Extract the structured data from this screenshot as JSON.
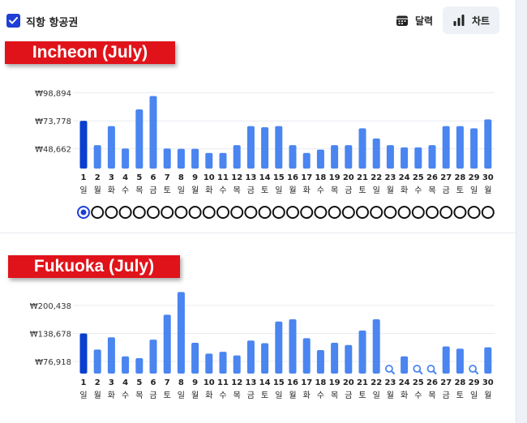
{
  "header": {
    "direct_label": "직항 항공권",
    "calendar_label": "달력",
    "chart_label": "차트"
  },
  "colors": {
    "bar": "#4a85f0",
    "bar_selected": "#0a3fcf",
    "banner": "#e0131a",
    "accent": "#1f3fd6"
  },
  "chart_data": [
    {
      "type": "bar",
      "title": "Incheon (July)",
      "currency": "₩",
      "y_ticks": [
        "₩98,894",
        "₩73,778",
        "₩48,662"
      ],
      "y_tick_values": [
        98894,
        73778,
        48662
      ],
      "ylim": [
        31000,
        100000
      ],
      "categories": [
        "1",
        "2",
        "3",
        "4",
        "5",
        "6",
        "7",
        "8",
        "9",
        "10",
        "11",
        "12",
        "13",
        "14",
        "15",
        "16",
        "17",
        "18",
        "19",
        "20",
        "21",
        "22",
        "23",
        "24",
        "25",
        "26",
        "27",
        "28",
        "29",
        "30"
      ],
      "weekdays": [
        "일",
        "월",
        "화",
        "수",
        "목",
        "금",
        "토",
        "일",
        "월",
        "화",
        "수",
        "목",
        "금",
        "토",
        "일",
        "월",
        "화",
        "수",
        "목",
        "금",
        "토",
        "일",
        "월",
        "화",
        "수",
        "목",
        "금",
        "토",
        "일",
        "월"
      ],
      "values": [
        73778,
        52000,
        69000,
        49000,
        84000,
        96000,
        49000,
        48662,
        48662,
        45000,
        45000,
        52000,
        69000,
        68000,
        69000,
        52000,
        45000,
        48000,
        52000,
        52000,
        67000,
        58000,
        52000,
        50000,
        50000,
        52000,
        69000,
        69000,
        67000,
        75000
      ],
      "selected_index": 0,
      "selector_count": 30
    },
    {
      "type": "bar",
      "title": "Fukuoka (July)",
      "currency": "₩",
      "y_ticks": [
        "₩200,438",
        "₩138,678",
        "₩76,918"
      ],
      "y_tick_values": [
        200438,
        138678,
        76918
      ],
      "ylim": [
        50000,
        220000
      ],
      "categories": [
        "1",
        "2",
        "3",
        "4",
        "5",
        "6",
        "7",
        "8",
        "9",
        "10",
        "11",
        "12",
        "13",
        "14",
        "15",
        "16",
        "17",
        "18",
        "19",
        "20",
        "21",
        "22",
        "23",
        "24",
        "25",
        "26",
        "27",
        "28",
        "29",
        "30"
      ],
      "weekdays": [
        "일",
        "월",
        "화",
        "수",
        "목",
        "금",
        "토",
        "일",
        "월",
        "화",
        "수",
        "목",
        "금",
        "토",
        "일",
        "월",
        "화",
        "수",
        "목",
        "금",
        "토",
        "일",
        "월",
        "화",
        "수",
        "목",
        "금",
        "토",
        "일",
        "월"
      ],
      "values": [
        138678,
        103000,
        130000,
        88000,
        84000,
        125000,
        180000,
        230000,
        118000,
        94000,
        98000,
        90000,
        123000,
        117000,
        165000,
        170000,
        128000,
        102000,
        118000,
        113000,
        145000,
        170000,
        null,
        88000,
        null,
        null,
        110000,
        105000,
        null,
        108000
      ],
      "missing_icon": "search-icon",
      "selected_index": 0
    }
  ]
}
